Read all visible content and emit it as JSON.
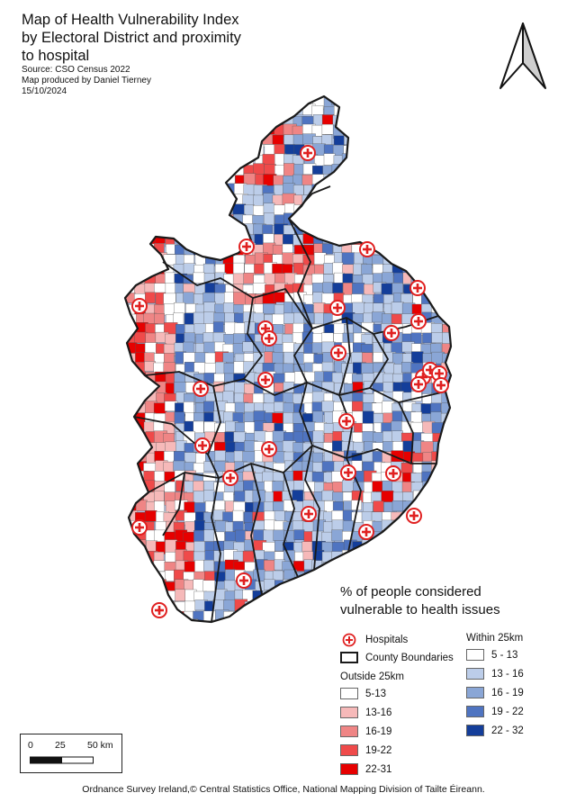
{
  "title": "Map of Health Vulnerability Index by Electoral District and proximity to hospital",
  "title_lines": [
    "Map of Health Vulnerability Index",
    "by Electoral District and proximity",
    "to hospital"
  ],
  "source": "Source: CSO Census 2022",
  "producer": "Map produced by Daniel Tierney",
  "date": "15/10/2024",
  "legend": {
    "title_lines": [
      "% of people considered",
      "vulnerable to health issues"
    ],
    "hospitals_label": "Hospitals",
    "county_label": "County Boundaries",
    "outside": {
      "heading": "Outside 25km",
      "classes": [
        {
          "label": "5-13",
          "color": "#ffffff"
        },
        {
          "label": "13-16",
          "color": "#f6b9b9"
        },
        {
          "label": "16-19",
          "color": "#ef8585"
        },
        {
          "label": "19-22",
          "color": "#ef4a4a"
        },
        {
          "label": "22-31",
          "color": "#e60000"
        }
      ]
    },
    "within": {
      "heading": "Within 25km",
      "classes": [
        {
          "label": "5 - 13",
          "color": "#ffffff"
        },
        {
          "label": "13 - 16",
          "color": "#bccde9"
        },
        {
          "label": "16 - 19",
          "color": "#8aa6d6"
        },
        {
          "label": "19 - 22",
          "color": "#4f74c1"
        },
        {
          "label": "22 - 32",
          "color": "#143e9a"
        }
      ]
    }
  },
  "scale": {
    "labels": [
      "0",
      "25",
      "50 km"
    ]
  },
  "credits": "Ordnance Survey Ireland,© Central Statistics Office, National Mapping Division of Tailte Éireann.",
  "icons": {
    "north": "north-arrow-icon",
    "hospital": "hospital-cross-icon"
  },
  "colors": {
    "county_border": "#1a1a1a",
    "hospital_red": "#e02020"
  }
}
